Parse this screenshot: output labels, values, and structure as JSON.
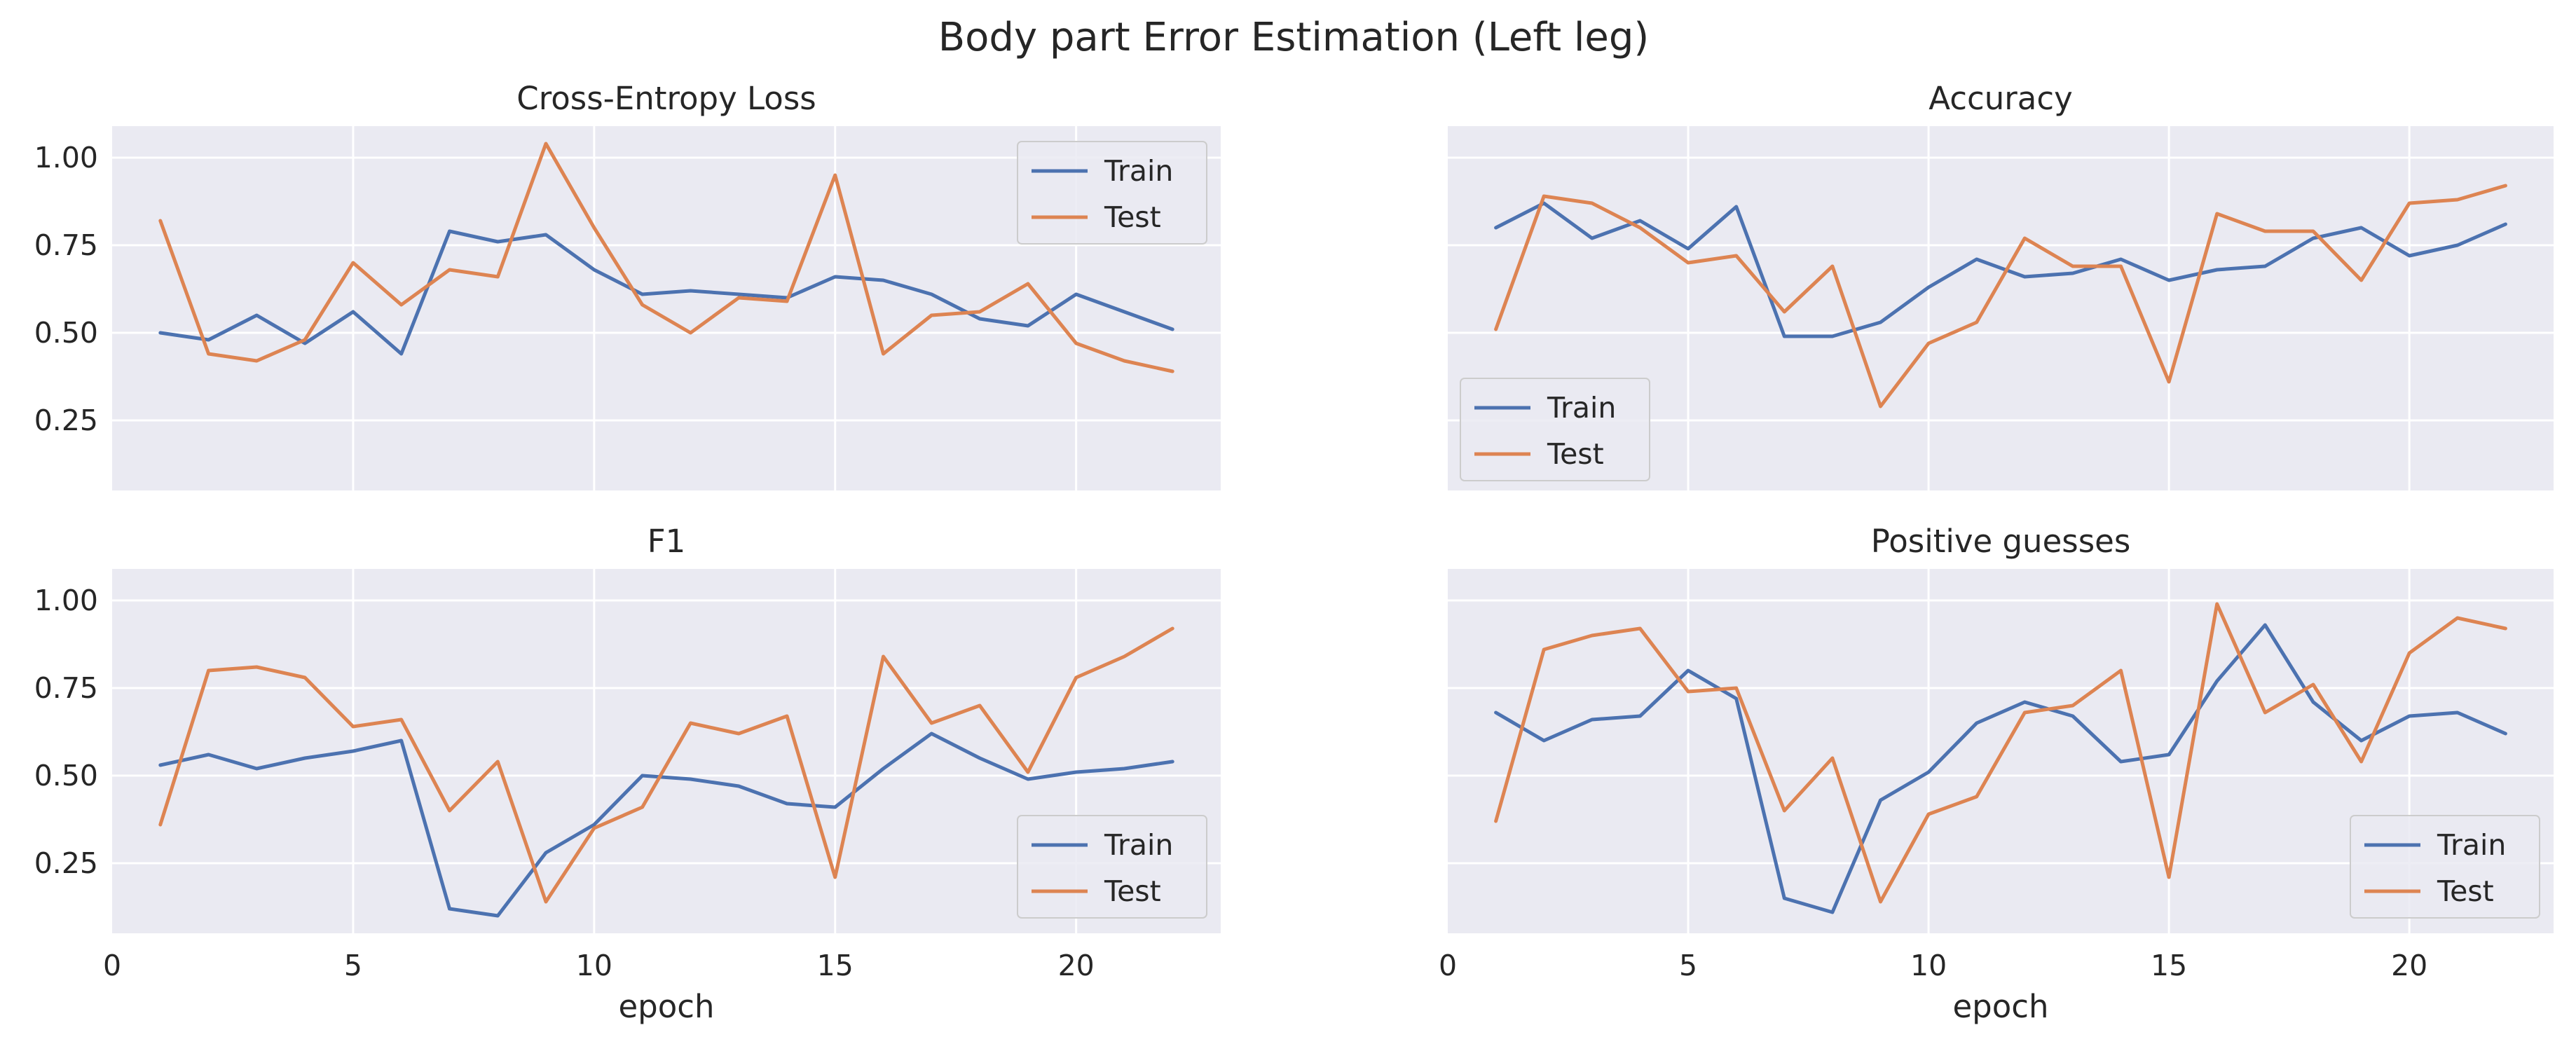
{
  "figure": {
    "title": "Body part Error Estimation (Left leg)",
    "x_label": "epoch",
    "series_names": [
      "Train",
      "Test"
    ],
    "colors": {
      "Train": "#4c72b0",
      "Test": "#dd8452",
      "axes_bg": "#eaeaf2",
      "grid": "#ffffff",
      "text": "#262626"
    }
  },
  "chart_data": [
    {
      "type": "line",
      "title": "Cross-Entropy Loss",
      "x": [
        1,
        2,
        3,
        4,
        5,
        6,
        7,
        8,
        9,
        10,
        11,
        12,
        13,
        14,
        15,
        16,
        17,
        18,
        19,
        20,
        21,
        22
      ],
      "series": [
        {
          "name": "Train",
          "values": [
            0.5,
            0.48,
            0.55,
            0.47,
            0.56,
            0.44,
            0.79,
            0.76,
            0.78,
            0.68,
            0.61,
            0.62,
            0.61,
            0.6,
            0.66,
            0.65,
            0.61,
            0.54,
            0.52,
            0.61,
            0.56,
            0.51
          ]
        },
        {
          "name": "Test",
          "values": [
            0.82,
            0.44,
            0.42,
            0.48,
            0.7,
            0.58,
            0.68,
            0.66,
            1.04,
            0.8,
            0.58,
            0.5,
            0.6,
            0.59,
            0.95,
            0.44,
            0.55,
            0.56,
            0.64,
            0.47,
            0.42,
            0.39
          ]
        }
      ],
      "xlim": [
        0,
        23
      ],
      "ylim": [
        0.05,
        1.09
      ],
      "yticks": [
        "0.25",
        "0.50",
        "0.75",
        "1.00"
      ],
      "xticks": [
        "0",
        "5",
        "10",
        "15",
        "20"
      ],
      "show_yticks": true,
      "show_xticks": false,
      "xlabel": "",
      "legend": "upper right",
      "grid": true
    },
    {
      "type": "line",
      "title": "Accuracy",
      "x": [
        1,
        2,
        3,
        4,
        5,
        6,
        7,
        8,
        9,
        10,
        11,
        12,
        13,
        14,
        15,
        16,
        17,
        18,
        19,
        20,
        21,
        22
      ],
      "series": [
        {
          "name": "Train",
          "values": [
            0.8,
            0.87,
            0.77,
            0.82,
            0.74,
            0.86,
            0.49,
            0.49,
            0.53,
            0.63,
            0.71,
            0.66,
            0.67,
            0.71,
            0.65,
            0.68,
            0.69,
            0.77,
            0.8,
            0.72,
            0.75,
            0.81
          ]
        },
        {
          "name": "Test",
          "values": [
            0.51,
            0.89,
            0.87,
            0.8,
            0.7,
            0.72,
            0.56,
            0.69,
            0.29,
            0.47,
            0.53,
            0.77,
            0.69,
            0.69,
            0.36,
            0.84,
            0.79,
            0.79,
            0.65,
            0.87,
            0.88,
            0.92
          ]
        }
      ],
      "xlim": [
        0,
        23
      ],
      "ylim": [
        0.05,
        1.09
      ],
      "yticks": [
        "0.25",
        "0.50",
        "0.75",
        "1.00"
      ],
      "xticks": [
        "0",
        "5",
        "10",
        "15",
        "20"
      ],
      "show_yticks": false,
      "show_xticks": false,
      "xlabel": "",
      "legend": "lower left",
      "grid": true
    },
    {
      "type": "line",
      "title": "F1",
      "x": [
        1,
        2,
        3,
        4,
        5,
        6,
        7,
        8,
        9,
        10,
        11,
        12,
        13,
        14,
        15,
        16,
        17,
        18,
        19,
        20,
        21,
        22
      ],
      "series": [
        {
          "name": "Train",
          "values": [
            0.53,
            0.56,
            0.52,
            0.55,
            0.57,
            0.6,
            0.12,
            0.1,
            0.28,
            0.36,
            0.5,
            0.49,
            0.47,
            0.42,
            0.41,
            0.52,
            0.62,
            0.55,
            0.49,
            0.51,
            0.52,
            0.54
          ]
        },
        {
          "name": "Test",
          "values": [
            0.36,
            0.8,
            0.81,
            0.78,
            0.64,
            0.66,
            0.4,
            0.54,
            0.14,
            0.35,
            0.41,
            0.65,
            0.62,
            0.67,
            0.21,
            0.84,
            0.65,
            0.7,
            0.51,
            0.78,
            0.84,
            0.92
          ]
        }
      ],
      "xlim": [
        0,
        23
      ],
      "ylim": [
        0.05,
        1.09
      ],
      "yticks": [
        "0.25",
        "0.50",
        "0.75",
        "1.00"
      ],
      "xticks": [
        "0",
        "5",
        "10",
        "15",
        "20"
      ],
      "show_yticks": true,
      "show_xticks": true,
      "xlabel": "epoch",
      "legend": "lower right",
      "grid": true
    },
    {
      "type": "line",
      "title": "Positive guesses",
      "x": [
        1,
        2,
        3,
        4,
        5,
        6,
        7,
        8,
        9,
        10,
        11,
        12,
        13,
        14,
        15,
        16,
        17,
        18,
        19,
        20,
        21,
        22
      ],
      "series": [
        {
          "name": "Train",
          "values": [
            0.68,
            0.6,
            0.66,
            0.67,
            0.8,
            0.72,
            0.15,
            0.11,
            0.43,
            0.51,
            0.65,
            0.71,
            0.67,
            0.54,
            0.56,
            0.77,
            0.93,
            0.71,
            0.6,
            0.67,
            0.68,
            0.62
          ]
        },
        {
          "name": "Test",
          "values": [
            0.37,
            0.86,
            0.9,
            0.92,
            0.74,
            0.75,
            0.4,
            0.55,
            0.14,
            0.39,
            0.44,
            0.68,
            0.7,
            0.8,
            0.21,
            0.99,
            0.68,
            0.76,
            0.54,
            0.85,
            0.95,
            0.92
          ]
        }
      ],
      "xlim": [
        0,
        23
      ],
      "ylim": [
        0.05,
        1.09
      ],
      "yticks": [
        "0.25",
        "0.50",
        "0.75",
        "1.00"
      ],
      "xticks": [
        "0",
        "5",
        "10",
        "15",
        "20"
      ],
      "show_yticks": false,
      "show_xticks": true,
      "xlabel": "epoch",
      "legend": "lower right",
      "grid": true
    }
  ]
}
